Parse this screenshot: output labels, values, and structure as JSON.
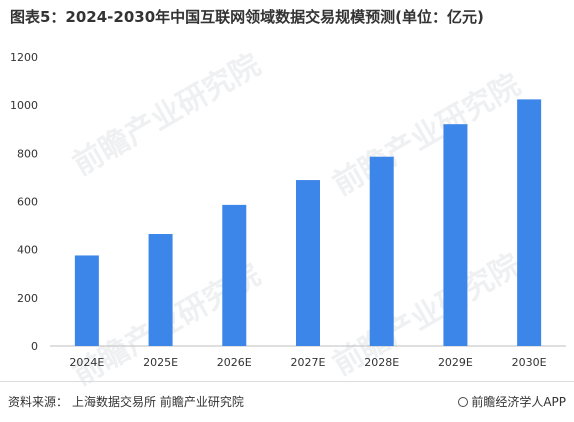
{
  "title": "图表5：2024-2030年中国互联网领域数据交易规模预测(单位：亿元)",
  "source": {
    "label": "资料来源：",
    "text": "上海数据交易所 前瞻产业研究院"
  },
  "brand": {
    "text": "前瞻经济学人APP",
    "icon": "qianzhan-logo-icon"
  },
  "watermark": {
    "text": "前瞻产业研究院"
  },
  "colors": {
    "bar": "#3b86e8",
    "axis": "#bfbfbf",
    "text": "#333333"
  },
  "chart_data": {
    "type": "bar",
    "categories": [
      "2024E",
      "2025E",
      "2026E",
      "2027E",
      "2028E",
      "2029E",
      "2030E"
    ],
    "values": [
      376,
      465,
      586,
      689,
      786,
      921,
      1024
    ],
    "y_ticks": [
      "0",
      "200",
      "400",
      "600",
      "800",
      "1000",
      "1200"
    ],
    "ylim": [
      0,
      1200
    ],
    "grid": false,
    "legend": "none"
  }
}
